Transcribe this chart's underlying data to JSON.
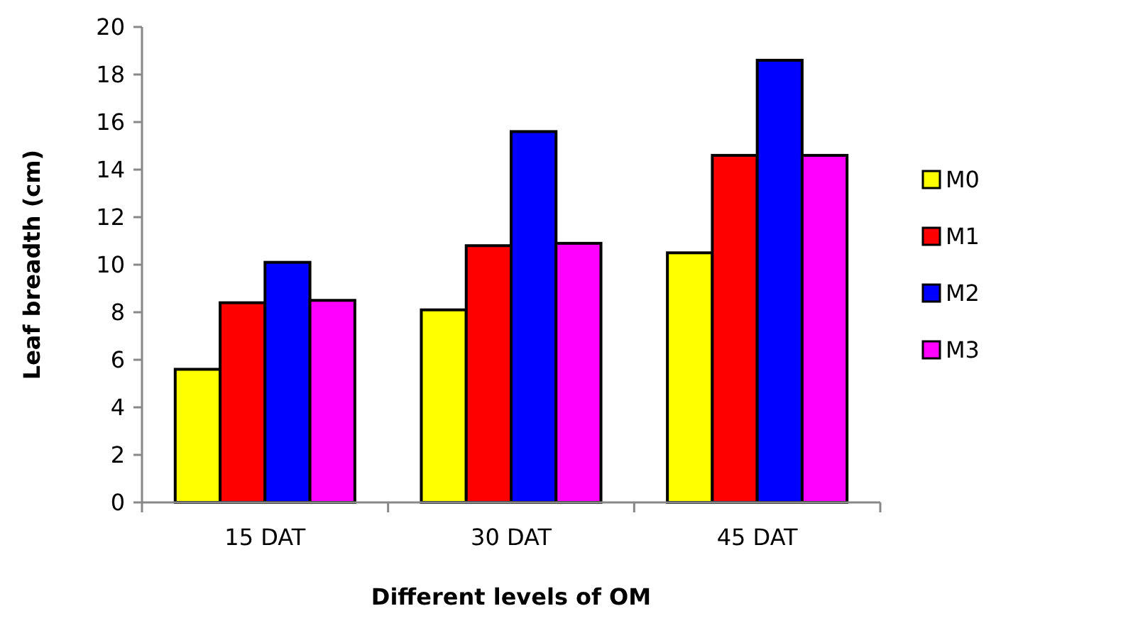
{
  "chart_data": {
    "type": "bar",
    "xlabel": "Different levels of OM",
    "ylabel": "Leaf breadth (cm)",
    "categories": [
      "15 DAT",
      "30 DAT",
      "45 DAT"
    ],
    "series": [
      {
        "name": "M0",
        "color": "#ffff00",
        "values": [
          5.6,
          8.1,
          10.5
        ]
      },
      {
        "name": "M1",
        "color": "#ff0000",
        "values": [
          8.4,
          10.8,
          14.6
        ]
      },
      {
        "name": "M2",
        "color": "#0000ff",
        "values": [
          10.1,
          15.6,
          18.6
        ]
      },
      {
        "name": "M3",
        "color": "#ff00ff",
        "values": [
          8.5,
          10.9,
          14.6
        ]
      }
    ],
    "ylim": [
      0,
      20
    ],
    "yticks": [
      0,
      2,
      4,
      6,
      8,
      10,
      12,
      14,
      16,
      18,
      20
    ],
    "grid": false,
    "legend": "right"
  }
}
